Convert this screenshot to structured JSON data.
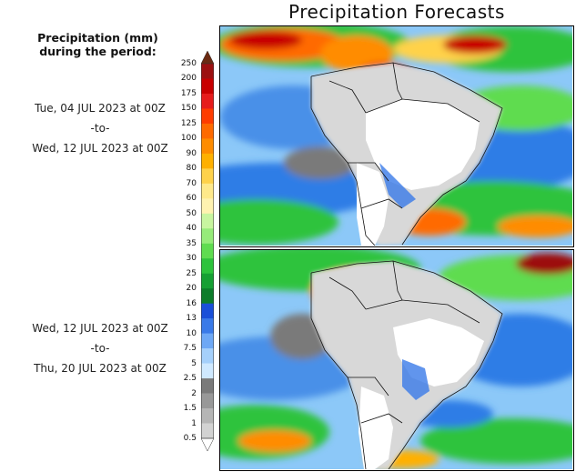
{
  "title": "Precipitation Forecasts",
  "legend": {
    "title_line1": "Precipitation (mm)",
    "title_line2": "during the period:",
    "units": "mm",
    "ticks": [
      "250",
      "200",
      "175",
      "150",
      "125",
      "100",
      "90",
      "80",
      "70",
      "60",
      "50",
      "40",
      "35",
      "30",
      "25",
      "20",
      "16",
      "13",
      "10",
      "7.5",
      "5",
      "2.5",
      "2",
      "1.5",
      "1",
      "0.5"
    ],
    "colors": [
      "#6b2a12",
      "#9c1010",
      "#c80000",
      "#e61c1c",
      "#ff3c00",
      "#ff6a00",
      "#ff8c00",
      "#ffb000",
      "#ffd24a",
      "#ffe98a",
      "#fff2b0",
      "#c8f5a0",
      "#96eb7a",
      "#5fdc50",
      "#2dc33c",
      "#16a033",
      "#0d7d2a",
      "#1a4fd8",
      "#3a7ae8",
      "#6ea8f5",
      "#a5d0fb",
      "#cfe9ff",
      "#7a7a7a",
      "#989898",
      "#b5b5b5",
      "#d2d2d2",
      "#ebebeb"
    ]
  },
  "periods": [
    {
      "start": "Tue, 04 JUL 2023 at 00Z",
      "separator": "-to-",
      "end": "Wed, 12 JUL 2023 at 00Z"
    },
    {
      "start": "Wed, 12 JUL 2023 at 00Z",
      "separator": "-to-",
      "end": "Thu, 20 JUL 2023 at 00Z"
    }
  ],
  "maps": [
    {
      "region": "South America",
      "period_index": 0
    },
    {
      "region": "South America",
      "period_index": 1
    }
  ]
}
